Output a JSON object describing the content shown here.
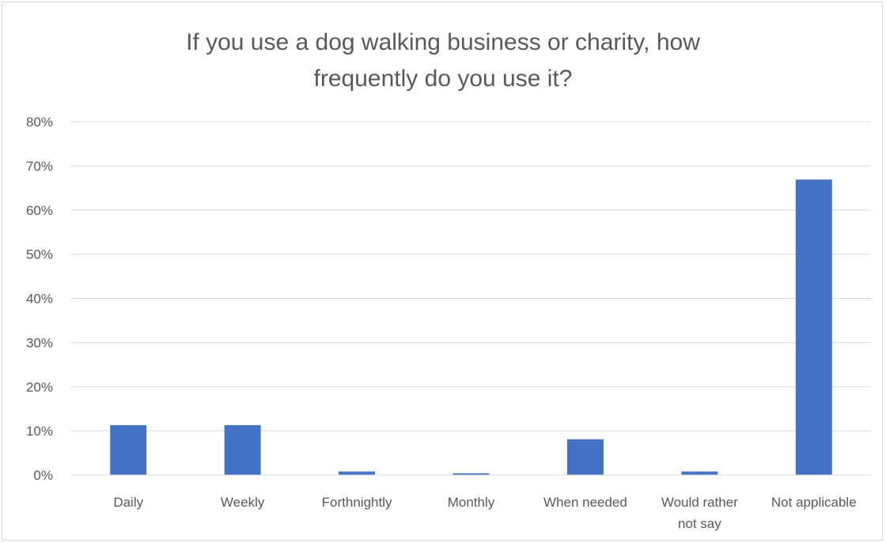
{
  "chart_data": {
    "type": "bar",
    "title": "If you use a dog walking business or charity, how frequently do you use it?",
    "title_lines": [
      "If you use a dog walking business or charity, how",
      "frequently do you use it?"
    ],
    "categories": [
      "Daily",
      "Weekly",
      "Forthnightly",
      "Monthly",
      "When needed",
      "Would rather not say",
      "Not applicable"
    ],
    "category_lines": [
      [
        "Daily"
      ],
      [
        "Weekly"
      ],
      [
        "Forthnightly"
      ],
      [
        "Monthly"
      ],
      [
        "When needed"
      ],
      [
        "Would rather",
        "not say"
      ],
      [
        "Not applicable"
      ]
    ],
    "values": [
      0.113,
      0.113,
      0.008,
      0.004,
      0.081,
      0.008,
      0.669
    ],
    "ylim": [
      0,
      0.8
    ],
    "yticks": [
      0,
      0.1,
      0.2,
      0.3,
      0.4,
      0.5,
      0.6,
      0.7,
      0.8
    ],
    "ytick_labels": [
      "0%",
      "10%",
      "20%",
      "30%",
      "40%",
      "50%",
      "60%",
      "70%",
      "80%"
    ],
    "xlabel": "",
    "ylabel": "",
    "grid": true,
    "legend": "none",
    "bar_color": "#4472c4"
  }
}
